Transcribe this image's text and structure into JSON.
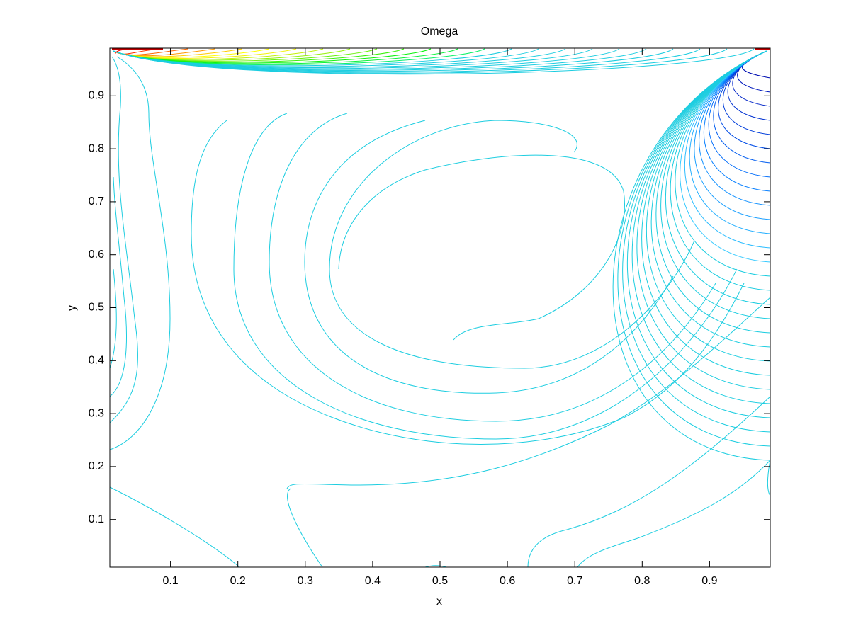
{
  "chart_data": {
    "type": "contour",
    "title": "Omega",
    "xlabel": "x",
    "ylabel": "y",
    "xlim": [
      0.01,
      0.99
    ],
    "ylim": [
      0.01,
      0.99
    ],
    "xticks": [
      0.1,
      0.2,
      0.3,
      0.4,
      0.5,
      0.6,
      0.7,
      0.8,
      0.9
    ],
    "yticks": [
      0.1,
      0.2,
      0.3,
      0.4,
      0.5,
      0.6,
      0.7,
      0.8,
      0.9
    ],
    "color": "#1ccde0"
  }
}
